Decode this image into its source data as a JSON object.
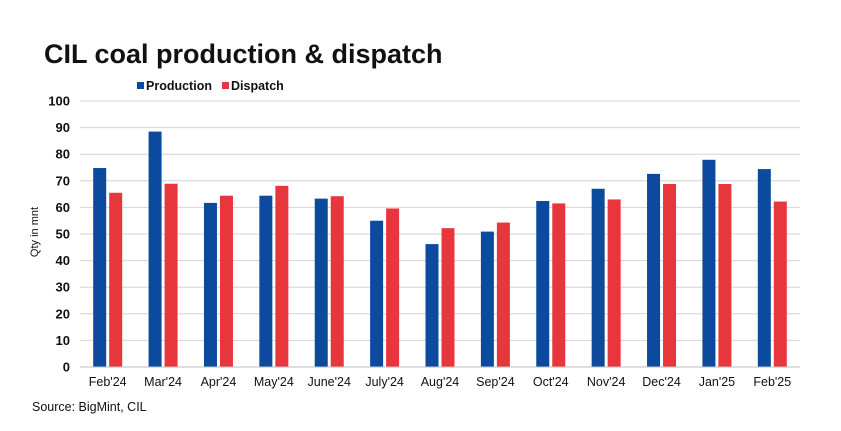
{
  "chart_data": {
    "type": "bar",
    "title": "CIL coal production & dispatch",
    "ylabel": "Qty in mnt",
    "xlabel": "",
    "ylim": [
      0,
      100
    ],
    "yticks": [
      0,
      10,
      20,
      30,
      40,
      50,
      60,
      70,
      80,
      90,
      100
    ],
    "grid": true,
    "legend_position": "top-left",
    "categories": [
      "Feb'24",
      "Mar'24",
      "Apr'24",
      "May'24",
      "June'24",
      "July'24",
      "Aug'24",
      "Sep'24",
      "Oct'24",
      "Nov'24",
      "Dec'24",
      "Jan'25",
      "Feb'25"
    ],
    "series": [
      {
        "name": "Production",
        "color": "#0b4a9c",
        "values": [
          74.8,
          88.5,
          61.7,
          64.4,
          63.3,
          55.0,
          46.2,
          50.9,
          62.4,
          67.0,
          72.6,
          77.9,
          74.4
        ]
      },
      {
        "name": "Dispatch",
        "color": "#e8373c",
        "values": [
          65.5,
          68.9,
          64.4,
          68.1,
          64.2,
          59.6,
          52.2,
          54.3,
          61.5,
          63.0,
          68.8,
          68.8,
          62.2
        ]
      }
    ],
    "source": "Source: BigMint, CIL"
  }
}
